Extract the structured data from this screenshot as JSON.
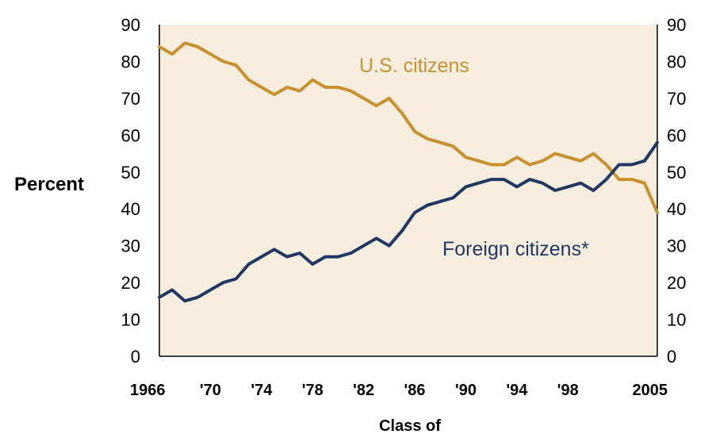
{
  "chart_data": {
    "type": "line",
    "ylabel": "Percent",
    "xlabel": "Class of",
    "x": [
      1966,
      1967,
      1968,
      1969,
      1970,
      1971,
      1972,
      1973,
      1974,
      1975,
      1976,
      1977,
      1978,
      1979,
      1980,
      1981,
      1982,
      1983,
      1984,
      1985,
      1986,
      1987,
      1988,
      1989,
      1990,
      1991,
      1992,
      1993,
      1994,
      1995,
      1996,
      1997,
      1998,
      1999,
      2000,
      2001,
      2002,
      2003,
      2004,
      2005
    ],
    "xlim": [
      1966,
      2005
    ],
    "ylim": [
      0,
      90
    ],
    "y_ticks": [
      "0",
      "10",
      "20",
      "30",
      "40",
      "50",
      "60",
      "70",
      "80",
      "90"
    ],
    "x_ticks": [
      {
        "value": 1966,
        "label": "1966"
      },
      {
        "value": 1970,
        "label": "'70"
      },
      {
        "value": 1974,
        "label": "'74"
      },
      {
        "value": 1978,
        "label": "'78"
      },
      {
        "value": 1982,
        "label": "'82"
      },
      {
        "value": 1986,
        "label": "'86"
      },
      {
        "value": 1990,
        "label": "'90"
      },
      {
        "value": 1994,
        "label": "'94"
      },
      {
        "value": 1998,
        "label": "'98"
      },
      {
        "value": 2005,
        "label": "2005"
      }
    ],
    "grid": false,
    "dual_y_axis": true,
    "series": [
      {
        "name": "U.S. citizens",
        "color": "#C8902F",
        "values": [
          84,
          82,
          85,
          84,
          82,
          80,
          79,
          75,
          73,
          71,
          73,
          72,
          75,
          73,
          73,
          72,
          70,
          68,
          70,
          66,
          61,
          59,
          58,
          57,
          54,
          53,
          52,
          52,
          54,
          52,
          53,
          55,
          54,
          53,
          55,
          52,
          48,
          48,
          47,
          39
        ]
      },
      {
        "name": "Foreign citizens*",
        "color": "#1F3864",
        "values": [
          16,
          18,
          15,
          16,
          18,
          20,
          21,
          25,
          27,
          29,
          27,
          28,
          25,
          27,
          27,
          28,
          30,
          32,
          30,
          34,
          39,
          41,
          42,
          43,
          46,
          47,
          48,
          48,
          46,
          48,
          47,
          45,
          46,
          47,
          45,
          48,
          52,
          52,
          53,
          58
        ]
      }
    ],
    "plot_background": "#F8EEDF"
  }
}
